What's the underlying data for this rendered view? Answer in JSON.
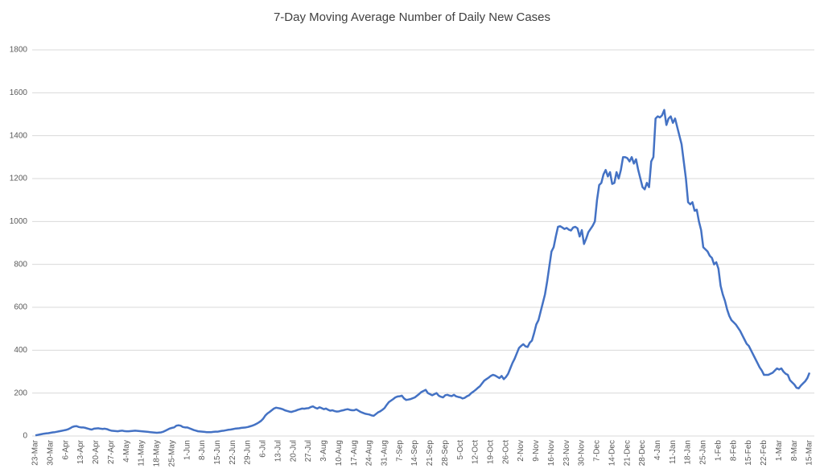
{
  "chart_data": {
    "type": "line",
    "title": "7-Day Moving Average Number of Daily New Cases",
    "categories": [
      "23-Mar",
      null,
      null,
      null,
      null,
      null,
      null,
      "30-Mar",
      null,
      null,
      null,
      null,
      null,
      null,
      "6-Apr",
      null,
      null,
      null,
      null,
      null,
      null,
      "13-Apr",
      null,
      null,
      null,
      null,
      null,
      null,
      "20-Apr",
      null,
      null,
      null,
      null,
      null,
      null,
      "27-Apr",
      null,
      null,
      null,
      null,
      null,
      null,
      "4-May",
      null,
      null,
      null,
      null,
      null,
      null,
      "11-May",
      null,
      null,
      null,
      null,
      null,
      null,
      "18-May",
      null,
      null,
      null,
      null,
      null,
      null,
      "25-May",
      null,
      null,
      null,
      null,
      null,
      null,
      "1-Jun",
      null,
      null,
      null,
      null,
      null,
      null,
      "8-Jun",
      null,
      null,
      null,
      null,
      null,
      null,
      "15-Jun",
      null,
      null,
      null,
      null,
      null,
      null,
      "22-Jun",
      null,
      null,
      null,
      null,
      null,
      null,
      "29-Jun",
      null,
      null,
      null,
      null,
      null,
      null,
      "6-Jul",
      null,
      null,
      null,
      null,
      null,
      null,
      "13-Jul",
      null,
      null,
      null,
      null,
      null,
      null,
      "20-Jul",
      null,
      null,
      null,
      null,
      null,
      null,
      "27-Jul",
      null,
      null,
      null,
      null,
      null,
      null,
      "3-Aug",
      null,
      null,
      null,
      null,
      null,
      null,
      "10-Aug",
      null,
      null,
      null,
      null,
      null,
      null,
      "17-Aug",
      null,
      null,
      null,
      null,
      null,
      null,
      "24-Aug",
      null,
      null,
      null,
      null,
      null,
      null,
      "31-Aug",
      null,
      null,
      null,
      null,
      null,
      null,
      "7-Sep",
      null,
      null,
      null,
      null,
      null,
      null,
      "14-Sep",
      null,
      null,
      null,
      null,
      null,
      null,
      "21-Sep",
      null,
      null,
      null,
      null,
      null,
      null,
      "28-Sep",
      null,
      null,
      null,
      null,
      null,
      null,
      "5-Oct",
      null,
      null,
      null,
      null,
      null,
      null,
      "12-Oct",
      null,
      null,
      null,
      null,
      null,
      null,
      "19-Oct",
      null,
      null,
      null,
      null,
      null,
      null,
      "26-Oct",
      null,
      null,
      null,
      null,
      null,
      null,
      "2-Nov",
      null,
      null,
      null,
      null,
      null,
      null,
      "9-Nov",
      null,
      null,
      null,
      null,
      null,
      null,
      "16-Nov",
      null,
      null,
      null,
      null,
      null,
      null,
      "23-Nov",
      null,
      null,
      null,
      null,
      null,
      null,
      "30-Nov",
      null,
      null,
      null,
      null,
      null,
      null,
      "7-Dec",
      null,
      null,
      null,
      null,
      null,
      null,
      "14-Dec",
      null,
      null,
      null,
      null,
      null,
      null,
      "21-Dec",
      null,
      null,
      null,
      null,
      null,
      null,
      "28-Dec",
      null,
      null,
      null,
      null,
      null,
      null,
      "4-Jan",
      null,
      null,
      null,
      null,
      null,
      null,
      "11-Jan",
      null,
      null,
      null,
      null,
      null,
      null,
      "18-Jan",
      null,
      null,
      null,
      null,
      null,
      null,
      "25-Jan",
      null,
      null,
      null,
      null,
      null,
      null,
      "1-Feb",
      null,
      null,
      null,
      null,
      null,
      null,
      "8-Feb",
      null,
      null,
      null,
      null,
      null,
      null,
      "15-Feb",
      null,
      null,
      null,
      null,
      null,
      null,
      "22-Feb",
      null,
      null,
      null,
      null,
      null,
      null,
      "1-Mar",
      null,
      null,
      null,
      null,
      null,
      null,
      "8-Mar",
      null,
      null,
      null,
      null,
      null,
      null,
      "15-Mar"
    ],
    "values": [
      3,
      5,
      7,
      9,
      11,
      12,
      13,
      15,
      17,
      18,
      20,
      22,
      24,
      26,
      28,
      31,
      36,
      42,
      45,
      46,
      42,
      40,
      40,
      38,
      35,
      32,
      30,
      34,
      35,
      36,
      34,
      33,
      34,
      32,
      28,
      25,
      24,
      23,
      22,
      24,
      25,
      23,
      22,
      22,
      23,
      24,
      25,
      24,
      23,
      22,
      21,
      20,
      19,
      18,
      17,
      16,
      15,
      16,
      17,
      20,
      25,
      30,
      35,
      38,
      40,
      48,
      50,
      48,
      42,
      40,
      40,
      36,
      32,
      28,
      25,
      22,
      21,
      20,
      19,
      18,
      18,
      18,
      19,
      20,
      20,
      22,
      24,
      25,
      27,
      29,
      30,
      32,
      34,
      35,
      36,
      38,
      39,
      40,
      42,
      45,
      48,
      52,
      57,
      63,
      70,
      80,
      95,
      105,
      112,
      120,
      128,
      132,
      130,
      128,
      125,
      120,
      117,
      114,
      112,
      115,
      118,
      122,
      125,
      128,
      127,
      129,
      130,
      135,
      138,
      132,
      128,
      134,
      130,
      125,
      128,
      122,
      118,
      120,
      116,
      114,
      115,
      118,
      120,
      123,
      125,
      122,
      120,
      120,
      124,
      118,
      112,
      108,
      104,
      102,
      100,
      96,
      94,
      102,
      110,
      115,
      122,
      130,
      145,
      158,
      165,
      172,
      180,
      184,
      185,
      188,
      175,
      168,
      170,
      172,
      176,
      180,
      188,
      196,
      205,
      210,
      215,
      200,
      195,
      190,
      195,
      200,
      188,
      183,
      180,
      190,
      192,
      188,
      186,
      192,
      185,
      182,
      180,
      175,
      178,
      185,
      190,
      200,
      207,
      215,
      224,
      232,
      245,
      258,
      265,
      272,
      280,
      285,
      282,
      276,
      270,
      280,
      265,
      275,
      290,
      315,
      340,
      360,
      385,
      410,
      420,
      428,
      418,
      415,
      435,
      445,
      480,
      520,
      540,
      580,
      620,
      660,
      720,
      790,
      860,
      880,
      930,
      975,
      978,
      972,
      965,
      970,
      962,
      958,
      972,
      975,
      968,
      930,
      960,
      895,
      920,
      950,
      965,
      980,
      1000,
      1100,
      1170,
      1180,
      1220,
      1240,
      1210,
      1230,
      1175,
      1180,
      1230,
      1200,
      1240,
      1300,
      1300,
      1295,
      1280,
      1300,
      1270,
      1290,
      1240,
      1200,
      1160,
      1150,
      1180,
      1160,
      1280,
      1300,
      1480,
      1490,
      1485,
      1495,
      1520,
      1450,
      1480,
      1490,
      1460,
      1480,
      1440,
      1400,
      1360,
      1280,
      1200,
      1090,
      1080,
      1090,
      1050,
      1055,
      1000,
      960,
      880,
      870,
      860,
      840,
      830,
      800,
      810,
      780,
      700,
      660,
      630,
      590,
      560,
      540,
      530,
      520,
      505,
      490,
      470,
      450,
      430,
      420,
      400,
      380,
      360,
      340,
      320,
      305,
      285,
      285,
      285,
      290,
      295,
      305,
      315,
      310,
      315,
      300,
      290,
      285,
      260,
      250,
      240,
      225,
      222,
      235,
      245,
      255,
      270,
      295
    ],
    "color": "#4472c4",
    "ylim": [
      0,
      1800
    ],
    "yticks": [
      0,
      200,
      400,
      600,
      800,
      1000,
      1200,
      1400,
      1600,
      1800
    ],
    "grid": true
  }
}
